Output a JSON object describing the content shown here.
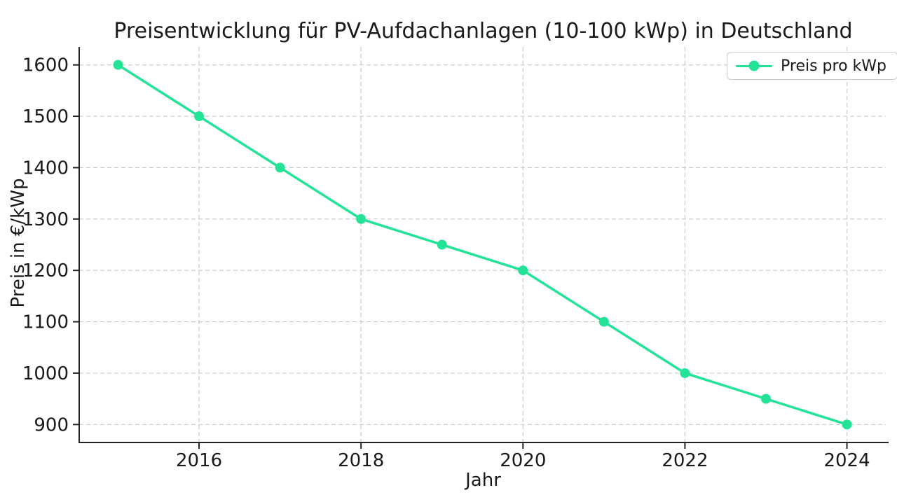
{
  "title": "Preisentwicklung für PV-Aufdachanlagen (10-100 kWp) in Deutschland",
  "chart_data": {
    "type": "line",
    "title": "Preisentwicklung für PV-Aufdachanlagen (10-100 kWp) in Deutschland",
    "xlabel": "Jahr",
    "ylabel": "Preis in €/kWp",
    "x": [
      2015,
      2016,
      2017,
      2018,
      2019,
      2020,
      2021,
      2022,
      2023,
      2024
    ],
    "series": [
      {
        "name": "Preis pro kWp",
        "values": [
          1600,
          1500,
          1400,
          1300,
          1250,
          1200,
          1100,
          1000,
          950,
          900
        ],
        "color": "#22e396",
        "marker": "circle"
      }
    ],
    "xticks": [
      2016,
      2018,
      2020,
      2022,
      2024
    ],
    "yticks": [
      900,
      1000,
      1100,
      1200,
      1300,
      1400,
      1500,
      1600
    ],
    "xlim": [
      2014.52,
      2024.48
    ],
    "ylim": [
      865,
      1635
    ],
    "grid": true,
    "grid_style": "dashed",
    "legend_position": "upper right",
    "legend": [
      "Preis pro kWp"
    ]
  },
  "legend_entry": "Preis pro kWp",
  "colors": {
    "series": "#22e396",
    "text": "#1a1a1a",
    "grid": "#c9c9c9",
    "spine": "#262626",
    "background": "#ffffff",
    "legend_border": "#cccccc"
  }
}
